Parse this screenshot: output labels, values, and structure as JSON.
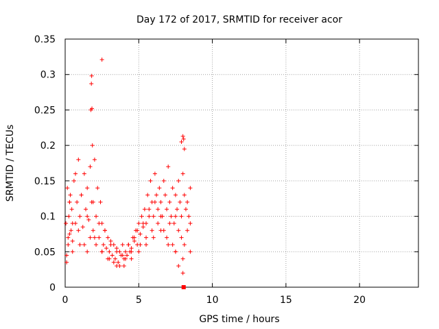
{
  "chart_data": {
    "type": "scatter",
    "title": "Day 172 of 2017, SRMTID for receiver acor",
    "xlabel": "GPS time / hours",
    "ylabel": "SRMTID / TECUs",
    "xlim": [
      0,
      24
    ],
    "ylim": [
      0,
      0.35
    ],
    "grid": true,
    "marker": "+",
    "color": "#ff0000",
    "xticks": [
      0,
      5,
      10,
      15,
      20
    ],
    "xtick_labels": [
      "0",
      "5",
      "10",
      "15",
      "20"
    ],
    "yticks": [
      0,
      0.05,
      0.1,
      0.15,
      0.2,
      0.25,
      0.3,
      0.35
    ],
    "ytick_labels": [
      "0",
      "0.05",
      "0.1",
      "0.15",
      "0.2",
      "0.25",
      "0.3",
      "0.35"
    ],
    "series": [
      {
        "x": [
          0.05,
          0.1,
          0.15,
          0.2,
          0.25,
          0.3,
          0.35,
          0.4,
          0.45,
          0.5,
          0.6,
          0.7,
          0.8,
          0.9,
          1.0,
          1.1,
          1.2,
          1.3,
          1.4,
          1.5,
          1.6,
          1.7,
          1.8,
          1.9,
          2.0,
          2.1,
          2.2,
          2.3,
          2.4,
          2.5,
          2.6,
          2.7,
          2.8,
          2.9,
          3.0,
          3.1,
          3.2,
          3.3,
          3.4,
          3.5,
          3.6,
          3.7,
          3.8,
          3.9,
          4.0,
          4.1,
          4.2,
          4.3,
          4.4,
          4.5,
          4.6,
          4.7,
          4.8,
          4.9,
          5.0,
          5.1,
          5.2,
          5.3,
          5.4,
          5.5,
          5.6,
          5.7,
          5.8,
          5.9,
          6.0,
          6.1,
          6.2,
          6.3,
          6.4,
          6.5,
          6.6,
          6.7,
          6.8,
          6.9,
          7.0,
          7.1,
          7.2,
          7.3,
          7.4,
          7.5,
          7.6,
          7.7,
          7.8,
          7.9,
          8.0,
          8.1,
          8.2,
          8.3,
          8.4,
          8.5,
          0.1,
          0.2,
          0.3,
          0.5,
          0.7,
          0.9,
          1.1,
          1.3,
          1.5,
          1.7,
          1.9,
          2.1,
          2.3,
          2.5,
          2.7,
          2.9,
          3.1,
          3.3,
          3.5,
          3.7,
          3.9,
          4.1,
          4.3,
          4.5,
          4.7,
          4.9,
          5.1,
          5.3,
          5.5,
          5.7,
          5.9,
          6.1,
          6.3,
          6.5,
          6.7,
          6.9,
          7.1,
          7.3,
          7.5,
          7.7,
          7.9,
          8.1,
          8.3,
          8.5,
          1.75,
          1.78,
          1.8,
          1.82,
          1.85,
          2.5,
          7.9,
          8.0,
          8.05,
          8.1,
          8.0,
          7.7,
          7.5,
          0.3,
          0.5,
          1.0,
          1.5,
          2.0,
          2.5,
          3.0,
          3.5,
          4.0,
          4.5,
          5.0,
          5.5,
          6.0,
          6.5,
          7.0,
          7.5,
          8.0,
          8.5
        ],
        "y": [
          0.09,
          0.045,
          0.14,
          0.06,
          0.1,
          0.075,
          0.13,
          0.08,
          0.11,
          0.065,
          0.15,
          0.09,
          0.12,
          0.18,
          0.1,
          0.13,
          0.085,
          0.16,
          0.11,
          0.14,
          0.095,
          0.17,
          0.12,
          0.08,
          0.18,
          0.1,
          0.14,
          0.07,
          0.12,
          0.09,
          0.06,
          0.08,
          0.055,
          0.07,
          0.05,
          0.065,
          0.045,
          0.06,
          0.04,
          0.055,
          0.035,
          0.05,
          0.045,
          0.06,
          0.04,
          0.05,
          0.045,
          0.06,
          0.05,
          0.055,
          0.07,
          0.065,
          0.08,
          0.06,
          0.09,
          0.075,
          0.1,
          0.085,
          0.11,
          0.09,
          0.13,
          0.1,
          0.15,
          0.12,
          0.1,
          0.16,
          0.13,
          0.11,
          0.14,
          0.12,
          0.1,
          0.15,
          0.13,
          0.11,
          0.17,
          0.12,
          0.1,
          0.14,
          0.09,
          0.13,
          0.11,
          0.15,
          0.12,
          0.1,
          0.16,
          0.13,
          0.11,
          0.12,
          0.1,
          0.14,
          0.035,
          0.07,
          0.12,
          0.05,
          0.16,
          0.08,
          0.13,
          0.06,
          0.1,
          0.07,
          0.12,
          0.06,
          0.09,
          0.05,
          0.08,
          0.04,
          0.06,
          0.035,
          0.05,
          0.03,
          0.045,
          0.04,
          0.06,
          0.05,
          0.07,
          0.08,
          0.06,
          0.09,
          0.07,
          0.11,
          0.08,
          0.12,
          0.09,
          0.1,
          0.08,
          0.07,
          0.09,
          0.06,
          0.1,
          0.08,
          0.07,
          0.06,
          0.08,
          0.09,
          0.25,
          0.287,
          0.298,
          0.252,
          0.2,
          0.321,
          0.205,
          0.213,
          0.209,
          0.195,
          0.02,
          0.03,
          0.05,
          0.12,
          0.09,
          0.06,
          0.05,
          0.07,
          0.05,
          0.04,
          0.03,
          0.03,
          0.04,
          0.05,
          0.06,
          0.07,
          0.08,
          0.06,
          0.05,
          0.04,
          0.05
        ]
      }
    ],
    "annotations": [
      {
        "type": "marker",
        "shape": "square",
        "x": 8.05,
        "y": 0.0
      }
    ]
  }
}
